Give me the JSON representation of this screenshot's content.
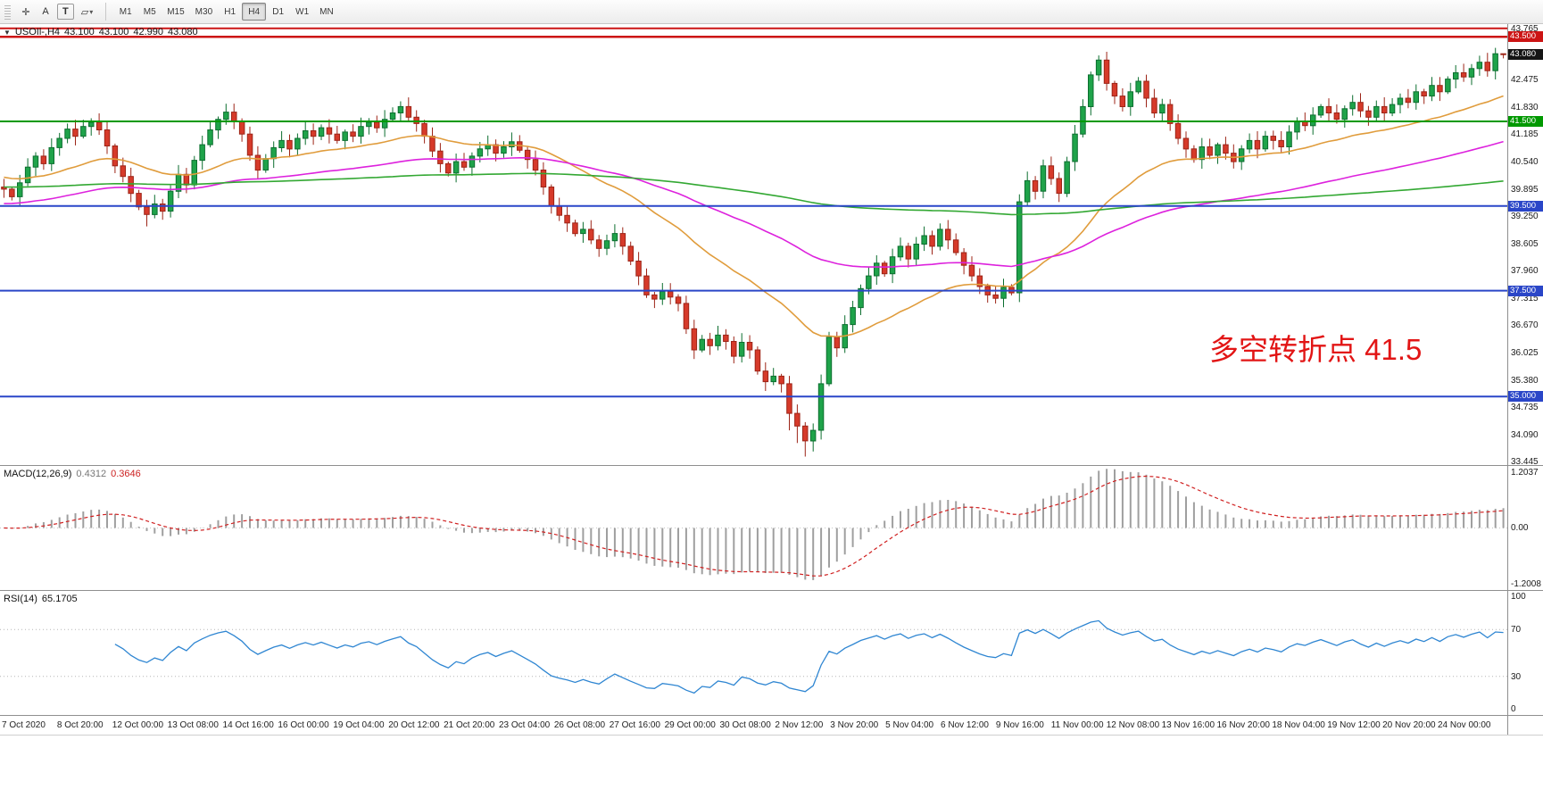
{
  "toolbar": {
    "tools": [
      {
        "name": "crosshair",
        "glyph": "✛"
      },
      {
        "name": "insert-text",
        "glyph": "A"
      },
      {
        "name": "text-label",
        "glyph": "T",
        "boxed": true
      },
      {
        "name": "shapes-dropdown",
        "glyph": "▱",
        "caret": "▾"
      }
    ],
    "timeframes": [
      {
        "label": "M1",
        "active": false
      },
      {
        "label": "M5",
        "active": false
      },
      {
        "label": "M15",
        "active": false
      },
      {
        "label": "M30",
        "active": false
      },
      {
        "label": "H1",
        "active": false
      },
      {
        "label": "H4",
        "active": true
      },
      {
        "label": "D1",
        "active": false
      },
      {
        "label": "W1",
        "active": false
      },
      {
        "label": "MN",
        "active": false
      }
    ]
  },
  "main_chart": {
    "header": {
      "collapse_icon": "▼",
      "symbol": "USOIl-,H4",
      "open": "43.100",
      "high": "43.100",
      "low": "42.990",
      "close": "43.080"
    },
    "annotation": {
      "text": "多空转折点 41.5",
      "color": "#e21515"
    },
    "scale": {
      "min": 33.4,
      "max": 43.8
    },
    "axis_labels": [
      "43.765",
      "43.120",
      "42.475",
      "41.830",
      "41.185",
      "40.540",
      "39.895",
      "39.250",
      "38.605",
      "37.960",
      "37.315",
      "36.670",
      "36.025",
      "35.380",
      "34.735",
      "34.090",
      "33.445"
    ],
    "price_tags": [
      {
        "label": "43.500",
        "price": 43.5,
        "bg": "#cc1414"
      },
      {
        "label": "43.080",
        "price": 43.08,
        "bg": "#151515"
      },
      {
        "label": "41.500",
        "price": 41.5,
        "bg": "#009900"
      },
      {
        "label": "39.500",
        "price": 39.5,
        "bg": "#2a46c8"
      },
      {
        "label": "37.500",
        "price": 37.5,
        "bg": "#2a46c8"
      },
      {
        "label": "35.000",
        "price": 35.0,
        "bg": "#2a46c8"
      }
    ]
  },
  "macd": {
    "label": "MACD(12,26,9)",
    "value_main": "0.4312",
    "value_signal": "0.3646",
    "axis": [
      "1.2037",
      "0.00",
      "-1.2008"
    ],
    "params": {
      "fast": 12,
      "slow": 26,
      "signal": 9
    },
    "histogram_color": "#9f9f9f",
    "signal_color": "#d02020"
  },
  "rsi": {
    "label": "RSI(14)",
    "value": "65.1705",
    "axis": [
      "100",
      "70",
      "30",
      "0"
    ],
    "period": 14,
    "levels": [
      70,
      30
    ],
    "line_color": "#2f86d2"
  },
  "time_axis": {
    "labels": [
      "7 Oct 2020",
      "8 Oct 20:00",
      "12 Oct 00:00",
      "13 Oct 08:00",
      "14 Oct 16:00",
      "16 Oct 00:00",
      "19 Oct 04:00",
      "20 Oct 12:00",
      "21 Oct 20:00",
      "23 Oct 04:00",
      "26 Oct 08:00",
      "27 Oct 16:00",
      "29 Oct 00:00",
      "30 Oct 08:00",
      "2 Nov 12:00",
      "3 Nov 20:00",
      "5 Nov 04:00",
      "6 Nov 12:00",
      "9 Nov 16:00",
      "11 Nov 00:00",
      "12 Nov 08:00",
      "13 Nov 16:00",
      "16 Nov 20:00",
      "18 Nov 04:00",
      "19 Nov 12:00",
      "20 Nov 20:00",
      "24 Nov 00:00"
    ]
  },
  "chart_data": {
    "type": "candlestick",
    "symbol": "USOIL",
    "timeframe": "H4",
    "title": "USOIl-,H4",
    "ylim": [
      33.4,
      43.8
    ],
    "first_open": 39.95,
    "closes": [
      39.9,
      39.72,
      40.05,
      40.42,
      40.68,
      40.5,
      40.88,
      41.1,
      41.32,
      41.15,
      41.38,
      41.48,
      41.3,
      40.92,
      40.45,
      40.2,
      39.8,
      39.48,
      39.3,
      39.55,
      39.38,
      39.85,
      40.25,
      40.0,
      40.58,
      40.95,
      41.3,
      41.55,
      41.72,
      41.5,
      41.2,
      40.7,
      40.35,
      40.62,
      40.88,
      41.05,
      40.85,
      41.1,
      41.28,
      41.15,
      41.35,
      41.2,
      41.05,
      41.25,
      41.15,
      41.38,
      41.48,
      41.35,
      41.55,
      41.7,
      41.85,
      41.6,
      41.45,
      41.15,
      40.8,
      40.5,
      40.28,
      40.55,
      40.42,
      40.68,
      40.85,
      40.95,
      40.75,
      40.9,
      41.02,
      40.82,
      40.6,
      40.35,
      39.95,
      39.5,
      39.28,
      39.1,
      38.85,
      38.95,
      38.7,
      38.5,
      38.68,
      38.85,
      38.55,
      38.2,
      37.85,
      37.4,
      37.3,
      37.48,
      37.35,
      37.2,
      36.6,
      36.1,
      36.35,
      36.2,
      36.45,
      36.3,
      35.95,
      36.28,
      36.1,
      35.6,
      35.35,
      35.48,
      35.3,
      34.6,
      34.3,
      33.95,
      34.2,
      35.3,
      36.4,
      36.15,
      36.7,
      37.1,
      37.55,
      37.85,
      38.15,
      37.9,
      38.3,
      38.55,
      38.25,
      38.6,
      38.8,
      38.55,
      38.95,
      38.7,
      38.4,
      38.1,
      37.85,
      37.6,
      37.4,
      37.32,
      37.58,
      37.45,
      39.6,
      40.1,
      39.85,
      40.45,
      40.15,
      39.8,
      40.55,
      41.2,
      41.85,
      42.6,
      42.95,
      42.4,
      42.1,
      41.85,
      42.2,
      42.45,
      42.05,
      41.7,
      41.9,
      41.45,
      41.1,
      40.85,
      40.6,
      40.9,
      40.7,
      40.95,
      40.75,
      40.55,
      40.85,
      41.05,
      40.85,
      41.15,
      41.05,
      40.9,
      41.25,
      41.5,
      41.4,
      41.65,
      41.85,
      41.7,
      41.55,
      41.8,
      41.95,
      41.75,
      41.6,
      41.85,
      41.7,
      41.9,
      42.05,
      41.95,
      42.2,
      42.1,
      42.35,
      42.2,
      42.5,
      42.65,
      42.55,
      42.75,
      42.9,
      42.7,
      43.1,
      43.08
    ],
    "last_candle": {
      "open": 43.1,
      "high": 43.1,
      "low": 42.99,
      "close": 43.08
    },
    "wick_overrides": {
      "18": {
        "low": 39.02
      },
      "99": {
        "low": 34.2
      },
      "100": {
        "low": 33.9
      },
      "101": {
        "low": 33.58
      },
      "102": {
        "low": 33.7
      },
      "138": {
        "high": 43.06
      },
      "189": {
        "high": 43.1,
        "low": 42.99
      }
    },
    "colors": {
      "up": "#1fa34a",
      "up_border": "#0c6e2f",
      "down": "#d63a2a",
      "down_border": "#9c2417"
    },
    "moving_averages": [
      {
        "name": "ma-fast-line",
        "period": 30,
        "seed": 40.2,
        "color": "#e09c3c"
      },
      {
        "name": "ma-mid-line",
        "period": 80,
        "seed": 39.55,
        "color": "#dd22dd"
      },
      {
        "name": "ma-slow-line",
        "period": 300,
        "seed": 39.95,
        "color": "#33a833"
      }
    ],
    "hlines": [
      {
        "price": 43.7,
        "color": "#cc1414",
        "width": 2
      },
      {
        "price": 43.5,
        "color": "#cc1414",
        "width": 2.5
      },
      {
        "price": 41.5,
        "color": "#009900",
        "width": 2
      },
      {
        "price": 39.5,
        "color": "#2a46c8",
        "width": 2
      },
      {
        "price": 37.5,
        "color": "#2a46c8",
        "width": 2
      },
      {
        "price": 35.0,
        "color": "#2a46c8",
        "width": 2
      }
    ],
    "current_price": 43.08
  }
}
